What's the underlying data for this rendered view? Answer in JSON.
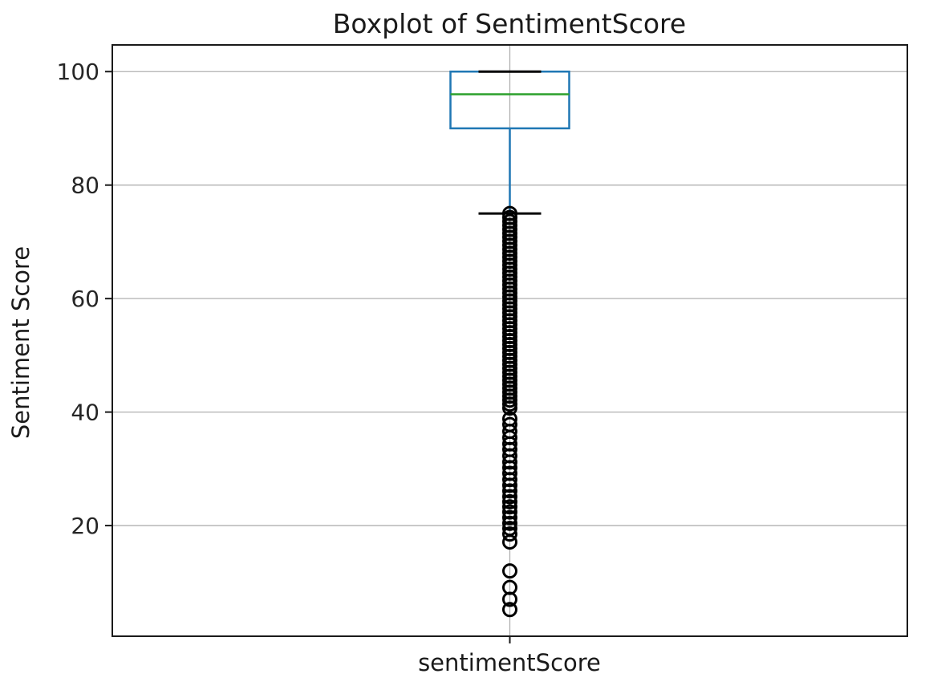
{
  "figure": {
    "background": "#ffffff"
  },
  "chart_data": {
    "type": "boxplot",
    "title": "Boxplot of SentimentScore",
    "xlabel": "",
    "ylabel": "Sentiment Score",
    "categories": [
      "sentimentScore"
    ],
    "ylim": [
      0.5,
      104.7
    ],
    "yticks": [
      20,
      40,
      60,
      80,
      100
    ],
    "grid": true,
    "series": [
      {
        "name": "sentimentScore",
        "q1": 90,
        "median": 96,
        "q3": 100,
        "whisker_low": 75,
        "whisker_high": 100,
        "outliers": [
          75.0,
          74.3,
          73.6,
          72.9,
          72.2,
          71.5,
          70.8,
          70.1,
          69.4,
          68.7,
          68.0,
          67.3,
          66.6,
          65.9,
          65.2,
          64.5,
          63.8,
          63.1,
          62.4,
          61.7,
          61.0,
          60.3,
          59.6,
          58.9,
          58.2,
          57.5,
          56.8,
          56.1,
          55.4,
          54.7,
          54.0,
          53.3,
          52.6,
          51.9,
          51.2,
          50.5,
          49.8,
          49.1,
          48.4,
          47.7,
          47.0,
          46.3,
          45.6,
          44.9,
          44.2,
          43.5,
          42.8,
          42.1,
          41.4,
          40.7,
          38.8,
          37.8,
          36.6,
          35.5,
          34.4,
          33.4,
          32.3,
          31.2,
          30.2,
          29.2,
          28.1,
          27.1,
          26.1,
          25.1,
          24.2,
          23.3,
          22.4,
          21.4,
          20.4,
          19.5,
          18.5,
          17.1,
          12.0,
          9.1,
          7.0,
          5.2
        ]
      }
    ],
    "colors": {
      "box": "#1f77b4",
      "median": "#2ca02c",
      "caps": "#000000",
      "fliers": "#000000",
      "grid": "#b0b0b0",
      "spine": "#1a1a1a"
    }
  }
}
